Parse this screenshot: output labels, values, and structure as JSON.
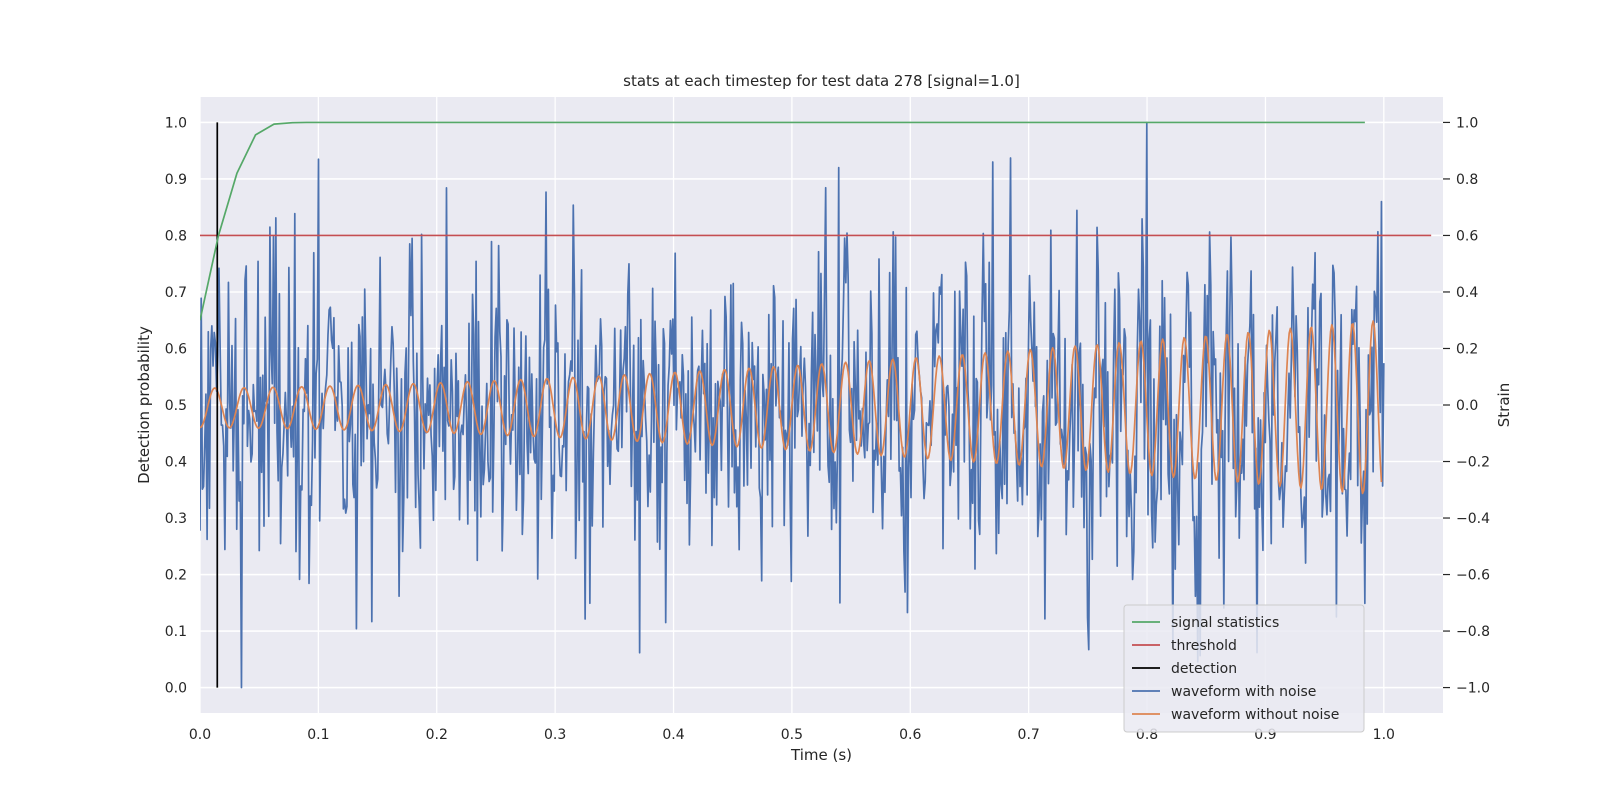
{
  "chart_data": {
    "type": "line",
    "title": "stats at each timestep for test data 278 [signal=1.0]",
    "xlabel": "Time (s)",
    "ylabel_left": "Detection probability",
    "ylabel_right": "Strain",
    "xlim": [
      0.0,
      1.05
    ],
    "ylim_left": [
      -0.045,
      1.045
    ],
    "ylim_right": [
      -1.09,
      1.09
    ],
    "xticks": [
      "0.0",
      "0.1",
      "0.2",
      "0.3",
      "0.4",
      "0.5",
      "0.6",
      "0.7",
      "0.8",
      "0.9",
      "1.0"
    ],
    "yticks_left": [
      "0.0",
      "0.1",
      "0.2",
      "0.3",
      "0.4",
      "0.5",
      "0.6",
      "0.7",
      "0.8",
      "0.9",
      "1.0"
    ],
    "yticks_right": [
      "−1.0",
      "−0.8",
      "−0.6",
      "−0.4",
      "−0.2",
      "0.0",
      "0.2",
      "0.4",
      "0.6",
      "0.8",
      "1.0"
    ],
    "grid": true,
    "legend_position": "lower-right",
    "series": [
      {
        "name": "signal statistics",
        "axis": "left",
        "color": "#55a868",
        "x": [
          0.0,
          0.0156,
          0.0312,
          0.0469,
          0.0625,
          0.0781,
          0.09,
          0.1,
          0.2,
          0.5,
          0.8,
          0.984
        ],
        "y": [
          0.65,
          0.8,
          0.91,
          0.978,
          0.997,
          0.9995,
          1.0,
          1.0,
          1.0,
          1.0,
          1.0,
          1.0
        ]
      },
      {
        "name": "threshold",
        "axis": "left",
        "color": "#c44e52",
        "x": [
          0.0,
          1.04
        ],
        "y": [
          0.8,
          0.8
        ]
      },
      {
        "name": "detection",
        "axis": "left",
        "color": "#000000",
        "x": [
          0.0146,
          0.0146
        ],
        "y": [
          0.0,
          1.0
        ]
      },
      {
        "name": "waveform with noise",
        "axis": "right",
        "color": "#4c72b0",
        "noise": {
          "x_range": [
            0.0,
            1.0
          ],
          "points": 1000,
          "amplitude": 0.25,
          "noted_extremes": [
            {
              "x": 0.035,
              "y": -1.0
            },
            {
              "x": 0.1,
              "y": 0.87
            },
            {
              "x": 0.393,
              "y": -0.77
            },
            {
              "x": 0.8,
              "y": 1.0
            },
            {
              "x": 0.67,
              "y": 0.86
            },
            {
              "x": 0.54,
              "y": 0.84
            },
            {
              "x": 0.96,
              "y": -0.75
            },
            {
              "x": 0.998,
              "y": 0.72
            }
          ]
        }
      },
      {
        "name": "waveform without noise",
        "axis": "right",
        "color": "#dd8452",
        "chirp": {
          "x_range": [
            0.0,
            0.998
          ],
          "points": 1000,
          "center": -0.01,
          "amplitude_start": 0.07,
          "amplitude_end": 0.31,
          "cycles_start_per_s": 40,
          "cycles_end_per_s": 58
        }
      }
    ]
  },
  "legend": {
    "items": [
      {
        "label": "signal statistics",
        "color": "#55a868"
      },
      {
        "label": "threshold",
        "color": "#c44e52"
      },
      {
        "label": "detection",
        "color": "#000000"
      },
      {
        "label": "waveform with noise",
        "color": "#4c72b0"
      },
      {
        "label": "waveform without noise",
        "color": "#dd8452"
      }
    ]
  }
}
